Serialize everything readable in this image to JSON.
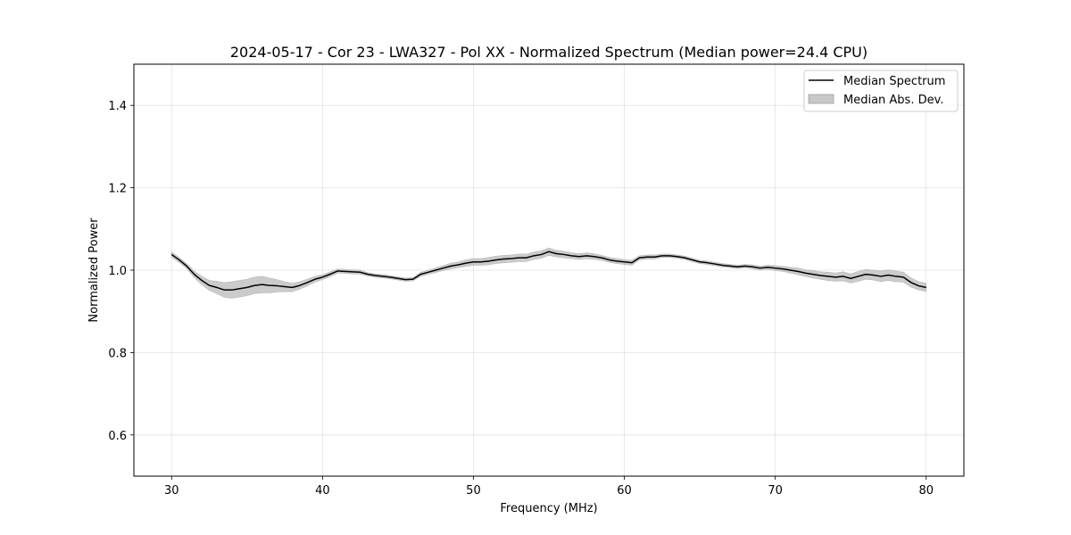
{
  "chart_data": {
    "type": "line",
    "title": "2024-05-17 - Cor 23 - LWA327 - Pol XX - Normalized Spectrum (Median power=24.4 CPU)",
    "xlabel": "Frequency (MHz)",
    "ylabel": "Normalized Power",
    "xlim": [
      27.5,
      82.5
    ],
    "ylim": [
      0.5,
      1.5
    ],
    "xticks": [
      30,
      40,
      50,
      60,
      70,
      80
    ],
    "xtick_labels": [
      "30",
      "40",
      "50",
      "60",
      "70",
      "80"
    ],
    "yticks": [
      0.6,
      0.8,
      1.0,
      1.2,
      1.4
    ],
    "ytick_labels": [
      "0.6",
      "0.8",
      "1.0",
      "1.2",
      "1.4"
    ],
    "grid": true,
    "legend_position": "top-right",
    "series": [
      {
        "name": "Median Spectrum",
        "kind": "line",
        "color": "#000000",
        "x": [
          30,
          30.5,
          31,
          31.5,
          32,
          32.5,
          33,
          33.5,
          34,
          34.5,
          35,
          35.5,
          36,
          36.5,
          37,
          37.5,
          38,
          38.5,
          39,
          39.5,
          40,
          40.5,
          41,
          41.5,
          42,
          42.5,
          43,
          43.5,
          44,
          44.5,
          45,
          45.5,
          46,
          46.5,
          47,
          47.5,
          48,
          48.5,
          49,
          49.5,
          50,
          50.5,
          51,
          51.5,
          52,
          52.5,
          53,
          53.5,
          54,
          54.5,
          55,
          55.5,
          56,
          56.5,
          57,
          57.5,
          58,
          58.5,
          59,
          59.5,
          60,
          60.5,
          61,
          61.5,
          62,
          62.5,
          63,
          63.5,
          64,
          64.5,
          65,
          65.5,
          66,
          66.5,
          67,
          67.5,
          68,
          68.5,
          69,
          69.5,
          70,
          70.5,
          71,
          71.5,
          72,
          72.5,
          73,
          73.5,
          74,
          74.5,
          75,
          75.5,
          76,
          76.5,
          77,
          77.5,
          78,
          78.5,
          79,
          79.5,
          80
        ],
        "values": [
          1.038,
          1.025,
          1.01,
          0.99,
          0.975,
          0.963,
          0.958,
          0.952,
          0.952,
          0.955,
          0.958,
          0.963,
          0.965,
          0.963,
          0.962,
          0.96,
          0.958,
          0.963,
          0.97,
          0.978,
          0.983,
          0.99,
          0.998,
          0.997,
          0.996,
          0.995,
          0.99,
          0.987,
          0.985,
          0.983,
          0.98,
          0.977,
          0.978,
          0.99,
          0.995,
          1.0,
          1.005,
          1.01,
          1.013,
          1.017,
          1.02,
          1.02,
          1.022,
          1.025,
          1.027,
          1.028,
          1.03,
          1.03,
          1.035,
          1.038,
          1.045,
          1.04,
          1.038,
          1.035,
          1.033,
          1.035,
          1.033,
          1.03,
          1.025,
          1.022,
          1.02,
          1.018,
          1.03,
          1.032,
          1.032,
          1.035,
          1.035,
          1.033,
          1.03,
          1.025,
          1.02,
          1.018,
          1.015,
          1.012,
          1.01,
          1.008,
          1.01,
          1.008,
          1.005,
          1.007,
          1.005,
          1.003,
          1.0,
          0.997,
          0.993,
          0.99,
          0.987,
          0.985,
          0.983,
          0.985,
          0.98,
          0.985,
          0.99,
          0.988,
          0.985,
          0.988,
          0.985,
          0.983,
          0.97,
          0.962,
          0.958
        ],
        "spread": [
          0.006,
          0.006,
          0.006,
          0.008,
          0.01,
          0.012,
          0.015,
          0.018,
          0.02,
          0.02,
          0.02,
          0.02,
          0.02,
          0.018,
          0.015,
          0.012,
          0.01,
          0.009,
          0.008,
          0.007,
          0.006,
          0.006,
          0.005,
          0.005,
          0.005,
          0.005,
          0.004,
          0.004,
          0.004,
          0.004,
          0.004,
          0.004,
          0.004,
          0.005,
          0.005,
          0.006,
          0.006,
          0.007,
          0.007,
          0.008,
          0.008,
          0.008,
          0.009,
          0.009,
          0.009,
          0.009,
          0.009,
          0.009,
          0.009,
          0.009,
          0.009,
          0.008,
          0.008,
          0.007,
          0.007,
          0.007,
          0.007,
          0.006,
          0.006,
          0.006,
          0.006,
          0.006,
          0.005,
          0.005,
          0.005,
          0.004,
          0.004,
          0.004,
          0.004,
          0.004,
          0.004,
          0.004,
          0.004,
          0.004,
          0.004,
          0.004,
          0.004,
          0.005,
          0.005,
          0.005,
          0.006,
          0.006,
          0.007,
          0.008,
          0.008,
          0.009,
          0.009,
          0.01,
          0.01,
          0.011,
          0.011,
          0.012,
          0.012,
          0.012,
          0.013,
          0.013,
          0.013,
          0.012,
          0.011,
          0.01,
          0.01
        ]
      },
      {
        "name": "Median Abs. Dev.",
        "kind": "band",
        "color": "#c8c8c8"
      }
    ]
  }
}
